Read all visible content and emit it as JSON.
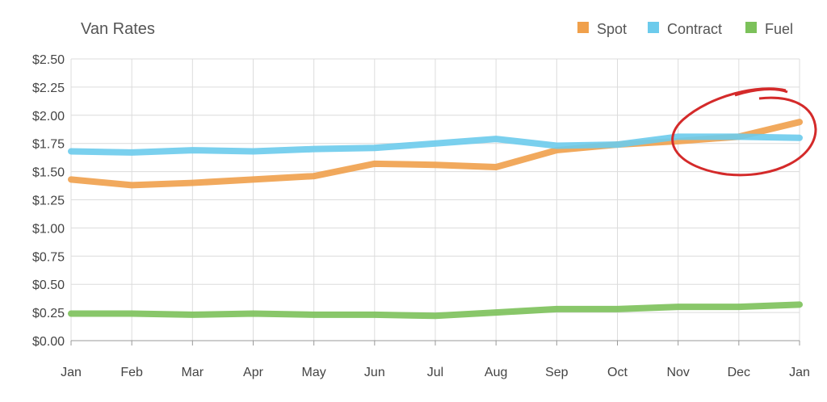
{
  "chart_data": {
    "type": "line",
    "title": "Van Rates",
    "categories": [
      "Jan",
      "Feb",
      "Mar",
      "Apr",
      "May",
      "Jun",
      "Jul",
      "Aug",
      "Sep",
      "Oct",
      "Nov",
      "Dec",
      "Jan"
    ],
    "y_ticks": [
      "$0.00",
      "$0.25",
      "$0.50",
      "$0.75",
      "$1.00",
      "$1.25",
      "$1.50",
      "$1.75",
      "$2.00",
      "$2.25",
      "$2.50"
    ],
    "ylim": [
      0,
      2.5
    ],
    "grid": true,
    "legend_position": "top-right",
    "series": [
      {
        "name": "Spot",
        "color": "#f0a04b",
        "values": [
          1.43,
          1.38,
          1.4,
          1.43,
          1.46,
          1.57,
          1.56,
          1.54,
          1.69,
          1.74,
          1.77,
          1.81,
          1.94
        ]
      },
      {
        "name": "Contract",
        "color": "#6ccbec",
        "values": [
          1.68,
          1.67,
          1.69,
          1.68,
          1.7,
          1.71,
          1.75,
          1.79,
          1.73,
          1.74,
          1.81,
          1.81,
          1.8
        ]
      },
      {
        "name": "Fuel",
        "color": "#7cc15a",
        "values": [
          0.24,
          0.24,
          0.23,
          0.24,
          0.23,
          0.23,
          0.22,
          0.25,
          0.28,
          0.28,
          0.3,
          0.3,
          0.32
        ]
      }
    ],
    "annotation": {
      "type": "hand-drawn circle",
      "color": "#d42a2a",
      "around": "Nov–Jan Spot crossing Contract"
    }
  }
}
